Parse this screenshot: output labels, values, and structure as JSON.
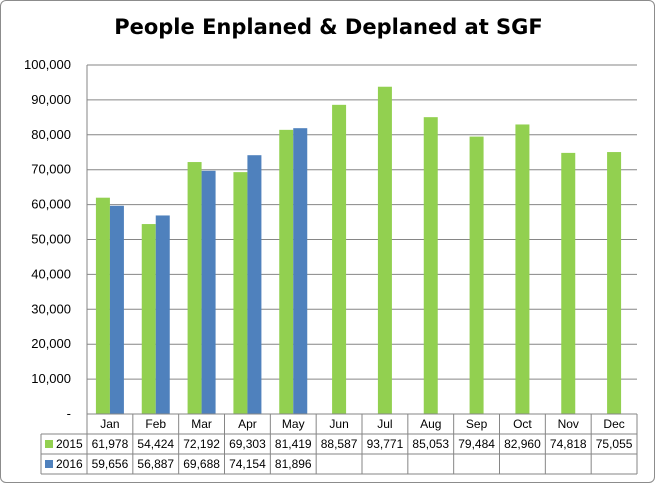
{
  "chart_data": {
    "type": "bar",
    "title": "People Enplaned & Deplaned at SGF",
    "xlabel": "",
    "ylabel": "",
    "ylim": [
      0,
      100000
    ],
    "yticks": [
      0,
      10000,
      20000,
      30000,
      40000,
      50000,
      60000,
      70000,
      80000,
      90000,
      100000
    ],
    "ytick_labels": [
      "-",
      "10,000",
      "20,000",
      "30,000",
      "40,000",
      "50,000",
      "60,000",
      "70,000",
      "80,000",
      "90,000",
      "100,000"
    ],
    "grid": true,
    "legend": "data-table",
    "categories": [
      "Jan",
      "Feb",
      "Mar",
      "Apr",
      "May",
      "Jun",
      "Jul",
      "Aug",
      "Sep",
      "Oct",
      "Nov",
      "Dec"
    ],
    "series": [
      {
        "name": "2015",
        "color": "#92d050",
        "values": [
          61978,
          54424,
          72192,
          69303,
          81419,
          88587,
          93771,
          85053,
          79484,
          82960,
          74818,
          75055
        ],
        "labels": [
          "61,978",
          "54,424",
          "72,192",
          "69,303",
          "81,419",
          "88,587",
          "93,771",
          "85,053",
          "79,484",
          "82,960",
          "74,818",
          "75,055"
        ]
      },
      {
        "name": "2016",
        "color": "#4f81bd",
        "values": [
          59656,
          56887,
          69688,
          74154,
          81896,
          null,
          null,
          null,
          null,
          null,
          null,
          null
        ],
        "labels": [
          "59,656",
          "56,887",
          "69,688",
          "74,154",
          "81,896",
          "",
          "",
          "",
          "",
          "",
          "",
          ""
        ]
      }
    ]
  }
}
